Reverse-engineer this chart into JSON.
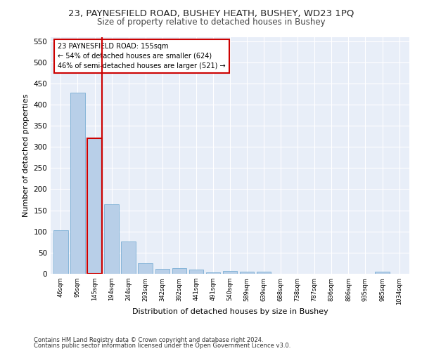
{
  "title": "23, PAYNESFIELD ROAD, BUSHEY HEATH, BUSHEY, WD23 1PQ",
  "subtitle": "Size of property relative to detached houses in Bushey",
  "xlabel": "Distribution of detached houses by size in Bushey",
  "ylabel": "Number of detached properties",
  "categories": [
    "46sqm",
    "95sqm",
    "145sqm",
    "194sqm",
    "244sqm",
    "293sqm",
    "342sqm",
    "392sqm",
    "441sqm",
    "491sqm",
    "540sqm",
    "589sqm",
    "639sqm",
    "688sqm",
    "738sqm",
    "787sqm",
    "836sqm",
    "886sqm",
    "935sqm",
    "985sqm",
    "1034sqm"
  ],
  "values": [
    103,
    428,
    321,
    164,
    77,
    25,
    12,
    13,
    10,
    4,
    6,
    5,
    5,
    0,
    0,
    0,
    0,
    0,
    0,
    5,
    0
  ],
  "bar_color": "#b8cfe8",
  "bar_edge_color": "#7aadd4",
  "highlight_bar_index": 2,
  "highlight_line_color": "#cc0000",
  "annotation_text": "23 PAYNESFIELD ROAD: 155sqm\n← 54% of detached houses are smaller (624)\n46% of semi-detached houses are larger (521) →",
  "annotation_box_color": "#ffffff",
  "annotation_box_edge": "#cc0000",
  "ylim": [
    0,
    560
  ],
  "yticks": [
    0,
    50,
    100,
    150,
    200,
    250,
    300,
    350,
    400,
    450,
    500,
    550
  ],
  "background_color": "#e8eef8",
  "grid_color": "#ffffff",
  "footer1": "Contains HM Land Registry data © Crown copyright and database right 2024.",
  "footer2": "Contains public sector information licensed under the Open Government Licence v3.0.",
  "title_fontsize": 9.5,
  "subtitle_fontsize": 8.5,
  "xlabel_fontsize": 8,
  "ylabel_fontsize": 8,
  "bar_width": 0.85
}
